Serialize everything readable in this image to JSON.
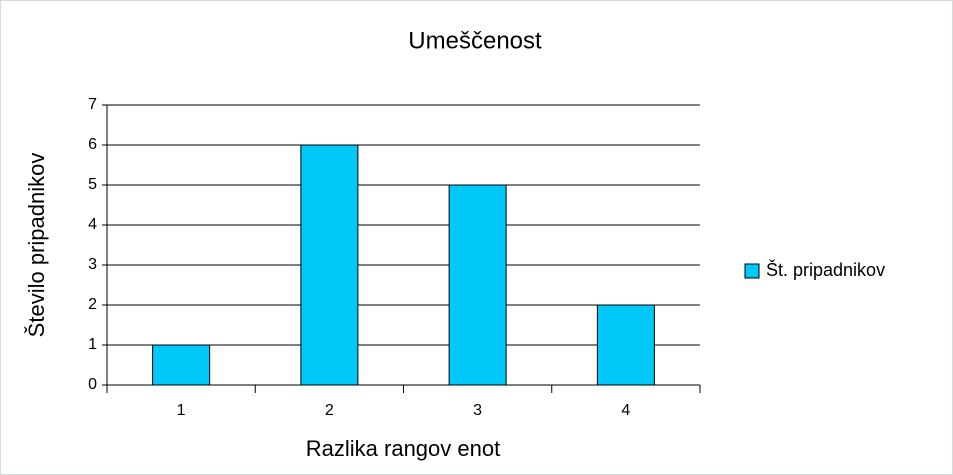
{
  "chart_data": {
    "type": "bar",
    "title": "Umeščenost",
    "x_label": "Razlika rangov enot",
    "y_label": "Število pripadnikov",
    "categories": [
      "1",
      "2",
      "3",
      "4"
    ],
    "series": [
      {
        "name": "Št. pripadnikov",
        "color": "#00c8f8",
        "values": [
          1,
          6,
          5,
          2
        ]
      }
    ],
    "ylim": [
      0,
      7
    ],
    "yticks": [
      0,
      1,
      2,
      3,
      4,
      5,
      6,
      7
    ],
    "grid": true,
    "legend": "right"
  }
}
